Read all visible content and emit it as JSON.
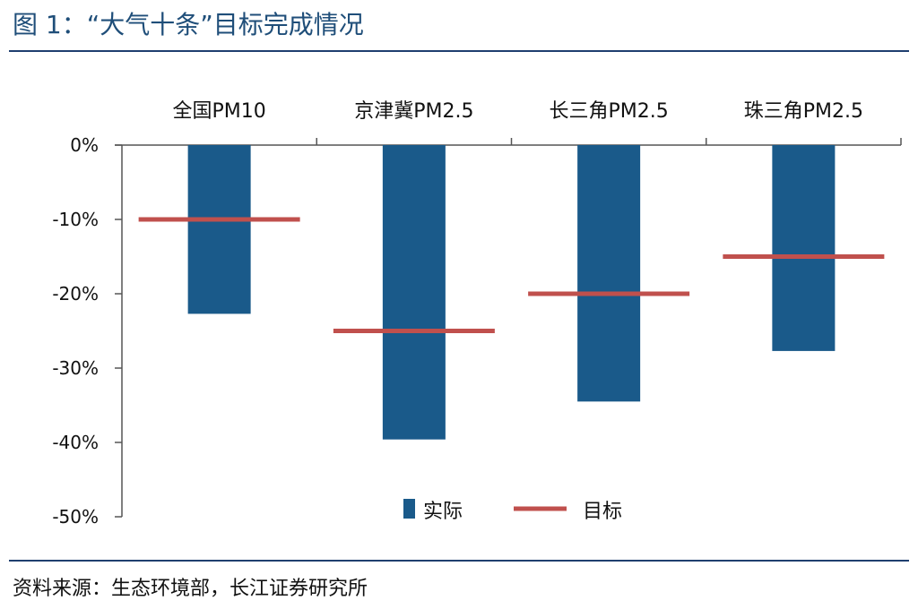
{
  "figure": {
    "title": "图 1：“大气十条”目标完成情况",
    "source": "资料来源：生态环境部，长江证券研究所"
  },
  "colors": {
    "bar": "#1a5a8a",
    "target_line": "#c0504d",
    "axis": "#555555",
    "rule": "#1f3f6f"
  },
  "chart_data": {
    "type": "bar",
    "title": "",
    "categories": [
      "全国PM10",
      "京津冀PM2.5",
      "长三角PM2.5",
      "珠三角PM2.5"
    ],
    "series": [
      {
        "name": "实际",
        "kind": "bar",
        "values": [
          -22.7,
          -39.6,
          -34.5,
          -27.7
        ]
      },
      {
        "name": "目标",
        "kind": "line-marker",
        "values": [
          -10,
          -25,
          -20,
          -15
        ]
      }
    ],
    "ylim": [
      -50,
      0
    ],
    "yticks": [
      0,
      -10,
      -20,
      -30,
      -40,
      -50
    ],
    "ytick_labels": [
      "0%",
      "-10%",
      "-20%",
      "-30%",
      "-40%",
      "-50%"
    ],
    "x_axis_position": "top",
    "legend_position": "bottom-center",
    "grid": false
  }
}
